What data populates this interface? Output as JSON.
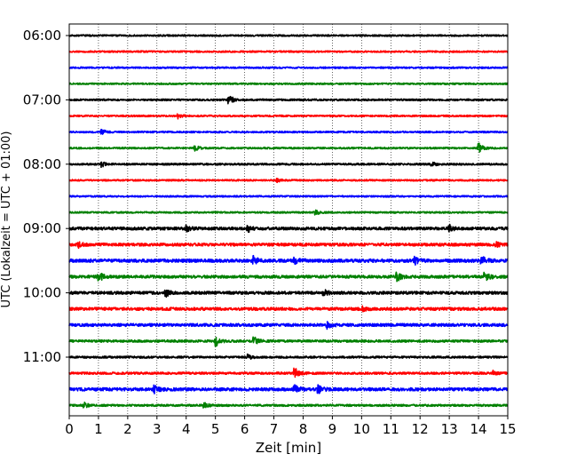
{
  "chart_data": {
    "type": "line",
    "subtype": "helicorder",
    "title": "",
    "xlabel": "Zeit  [min]",
    "ylabel": "UTC (Lokalzeit = UTC + 01:00)",
    "xlim": [
      0,
      15
    ],
    "x_ticks": [
      "0",
      "1",
      "2",
      "3",
      "4",
      "5",
      "6",
      "7",
      "8",
      "9",
      "10",
      "11",
      "12",
      "13",
      "14",
      "15"
    ],
    "y_tick_labels": [
      "06:00",
      "07:00",
      "08:00",
      "09:00",
      "10:00",
      "11:00"
    ],
    "trace_interval_minutes": 15,
    "grid": "vertical-dotted",
    "series_colors": [
      "#000000",
      "#ff0000",
      "#0000ff",
      "#008000"
    ],
    "traces": [
      {
        "start": "06:00",
        "color": "#000000",
        "noise": 0.9,
        "events": []
      },
      {
        "start": "06:15",
        "color": "#ff0000",
        "noise": 0.9,
        "events": []
      },
      {
        "start": "06:30",
        "color": "#0000ff",
        "noise": 0.9,
        "events": []
      },
      {
        "start": "06:45",
        "color": "#008000",
        "noise": 0.9,
        "events": []
      },
      {
        "start": "07:00",
        "color": "#000000",
        "noise": 1.0,
        "events": [
          [
            5.45,
            7
          ]
        ]
      },
      {
        "start": "07:15",
        "color": "#ff0000",
        "noise": 0.9,
        "events": [
          [
            3.7,
            3
          ]
        ]
      },
      {
        "start": "07:30",
        "color": "#0000ff",
        "noise": 0.9,
        "events": [
          [
            1.1,
            3
          ]
        ]
      },
      {
        "start": "07:45",
        "color": "#008000",
        "noise": 0.9,
        "events": [
          [
            4.3,
            3
          ],
          [
            14.0,
            6
          ]
        ]
      },
      {
        "start": "08:00",
        "color": "#000000",
        "noise": 1.0,
        "events": [
          [
            1.1,
            3
          ],
          [
            12.4,
            2.5
          ]
        ]
      },
      {
        "start": "08:15",
        "color": "#ff0000",
        "noise": 0.9,
        "events": [
          [
            7.1,
            2
          ]
        ]
      },
      {
        "start": "08:30",
        "color": "#0000ff",
        "noise": 0.9,
        "events": []
      },
      {
        "start": "08:45",
        "color": "#008000",
        "noise": 0.9,
        "events": [
          [
            8.4,
            3
          ]
        ]
      },
      {
        "start": "09:00",
        "color": "#000000",
        "noise": 1.6,
        "events": [
          [
            6.1,
            4
          ],
          [
            13.0,
            4
          ],
          [
            4.0,
            3
          ]
        ]
      },
      {
        "start": "09:15",
        "color": "#ff0000",
        "noise": 1.6,
        "events": [
          [
            0.3,
            3
          ],
          [
            14.6,
            3
          ]
        ]
      },
      {
        "start": "09:30",
        "color": "#0000ff",
        "noise": 1.8,
        "events": [
          [
            6.3,
            5
          ],
          [
            7.7,
            4
          ],
          [
            11.8,
            5
          ],
          [
            14.1,
            5
          ]
        ]
      },
      {
        "start": "09:45",
        "color": "#008000",
        "noise": 1.6,
        "events": [
          [
            1.0,
            6
          ],
          [
            11.2,
            5
          ],
          [
            14.2,
            7
          ]
        ]
      },
      {
        "start": "10:00",
        "color": "#000000",
        "noise": 1.6,
        "events": [
          [
            3.3,
            4
          ],
          [
            8.7,
            4
          ]
        ]
      },
      {
        "start": "10:15",
        "color": "#ff0000",
        "noise": 1.6,
        "events": [
          [
            10.0,
            3
          ]
        ]
      },
      {
        "start": "10:30",
        "color": "#0000ff",
        "noise": 1.6,
        "events": [
          [
            8.8,
            4
          ]
        ]
      },
      {
        "start": "10:45",
        "color": "#008000",
        "noise": 1.3,
        "events": [
          [
            5.0,
            6
          ],
          [
            6.3,
            5
          ]
        ]
      },
      {
        "start": "11:00",
        "color": "#000000",
        "noise": 1.1,
        "events": [
          [
            6.1,
            3
          ]
        ]
      },
      {
        "start": "11:15",
        "color": "#ff0000",
        "noise": 1.2,
        "events": [
          [
            7.7,
            7
          ],
          [
            14.5,
            3
          ]
        ]
      },
      {
        "start": "11:30",
        "color": "#0000ff",
        "noise": 1.7,
        "events": [
          [
            7.7,
            6
          ],
          [
            8.5,
            5
          ],
          [
            2.9,
            4
          ]
        ]
      },
      {
        "start": "11:45",
        "color": "#008000",
        "noise": 1.1,
        "events": [
          [
            4.6,
            3
          ],
          [
            0.5,
            3
          ]
        ]
      }
    ]
  }
}
